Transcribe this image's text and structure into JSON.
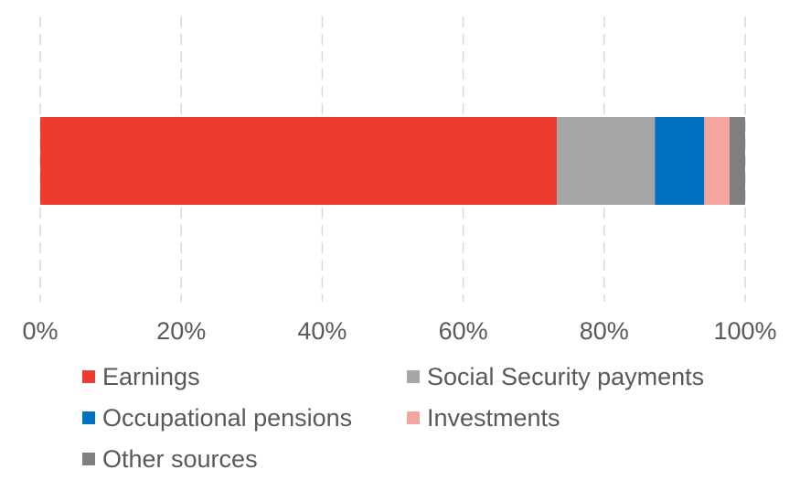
{
  "chart_data": {
    "type": "bar",
    "orientation": "horizontal",
    "stacked": "percent",
    "title": "",
    "xlabel": "",
    "ylabel": "",
    "xlim": [
      0,
      100
    ],
    "x_ticks": [
      "0%",
      "20%",
      "40%",
      "60%",
      "80%",
      "100%"
    ],
    "grid": "vertical dashed",
    "legend_position": "bottom",
    "series": [
      {
        "name": "Earnings",
        "value": 73.3,
        "color": "#ee3b2f"
      },
      {
        "name": "Social Security payments",
        "value": 13.9,
        "color": "#a6a6a6"
      },
      {
        "name": "Occupational pensions",
        "value": 7.0,
        "color": "#0070c0"
      },
      {
        "name": "Investments",
        "value": 3.6,
        "color": "#f4a59e"
      },
      {
        "name": "Other sources",
        "value": 2.2,
        "color": "#7f7f7f"
      }
    ]
  }
}
